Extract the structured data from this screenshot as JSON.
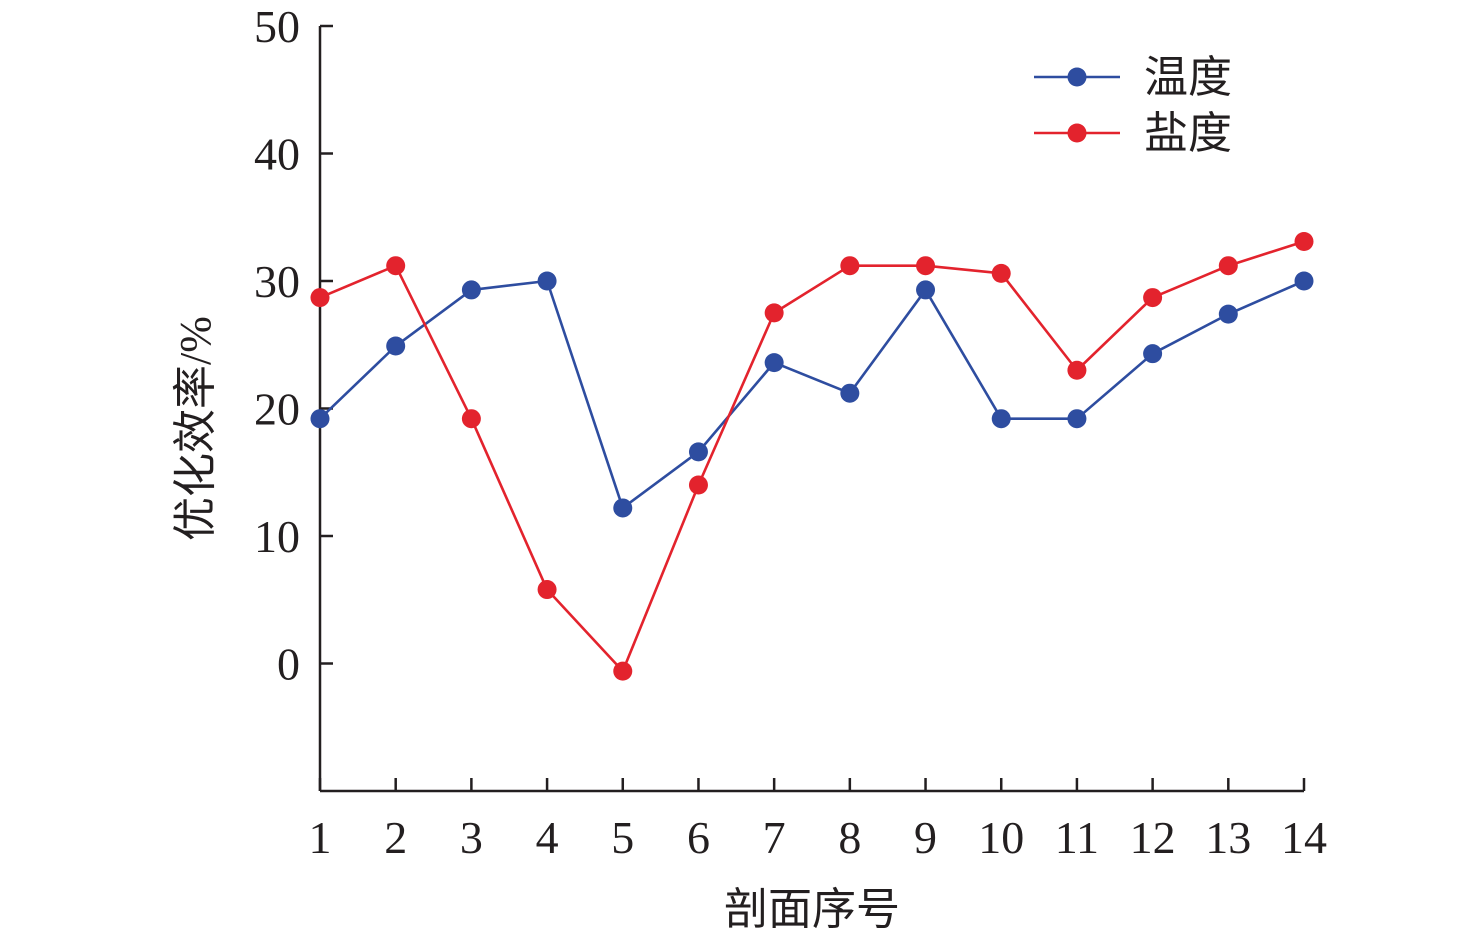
{
  "chart_data": {
    "type": "line",
    "xlabel": "剖面序号",
    "ylabel": "优化效率/%",
    "x": [
      1,
      2,
      3,
      4,
      5,
      6,
      7,
      8,
      9,
      10,
      11,
      12,
      13,
      14
    ],
    "x_tick_labels": [
      "1",
      "2",
      "3",
      "4",
      "5",
      "6",
      "7",
      "8",
      "9",
      "10",
      "11",
      "12",
      "13",
      "14"
    ],
    "ylim": [
      -10,
      50
    ],
    "y_ticks": [
      0,
      10,
      20,
      30,
      40,
      50
    ],
    "y_tick_labels": [
      "0",
      "10",
      "20",
      "30",
      "40",
      "50"
    ],
    "grid": false,
    "legend_position": "top-right",
    "series": [
      {
        "name": "温度",
        "color": "#2e4da0",
        "values": [
          19.2,
          24.9,
          29.3,
          30.0,
          12.2,
          16.6,
          23.6,
          21.2,
          29.3,
          19.2,
          19.2,
          24.3,
          27.4,
          30.0
        ]
      },
      {
        "name": "盐度",
        "color": "#e3232d",
        "values": [
          28.7,
          31.2,
          19.2,
          5.8,
          -0.6,
          14.0,
          27.5,
          31.2,
          31.2,
          30.6,
          23.0,
          28.7,
          31.2,
          33.1
        ]
      }
    ]
  }
}
